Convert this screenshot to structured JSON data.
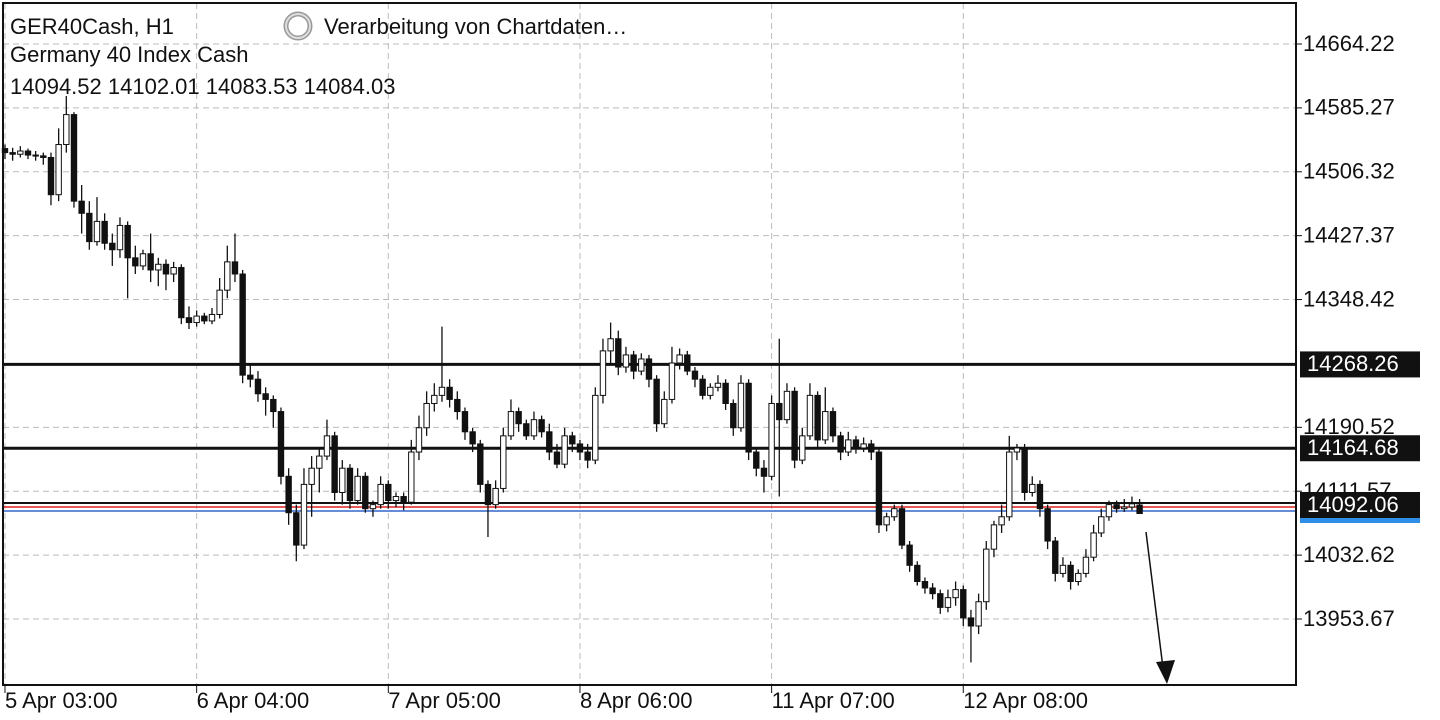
{
  "chart_data": {
    "type": "candlestick",
    "title": "GER40Cash, H1",
    "subtitle": "Germany 40 Index Cash",
    "status": "Verarbeitung von Chartdaten…",
    "ylim": [
      13872.1,
      14718.6
    ],
    "yticks": [
      14664.22,
      14585.27,
      14506.32,
      14427.37,
      14348.42,
      14190.52,
      14111.57,
      14032.62,
      13953.67
    ],
    "xlim": [
      -0.65,
      168.4
    ],
    "xticks": [
      {
        "value": 0,
        "label": "5 Apr 03:00"
      },
      {
        "value": 25,
        "label": "6 Apr 04:00"
      },
      {
        "value": 50,
        "label": "7 Apr 05:00"
      },
      {
        "value": 75,
        "label": "8 Apr 06:00"
      },
      {
        "value": 100,
        "label": "11 Apr 07:00"
      },
      {
        "value": 125,
        "label": "12 Apr 08:00"
      }
    ],
    "grid": true,
    "levels": [
      14268.26,
      14164.68
    ],
    "bid": 14092.06,
    "candles": [
      [
        14535,
        14540,
        14522,
        14530
      ],
      [
        14530,
        14536,
        14520,
        14528
      ],
      [
        14528,
        14538,
        14524,
        14532
      ],
      [
        14532,
        14535,
        14522,
        14527
      ],
      [
        14527,
        14532,
        14520,
        14526
      ],
      [
        14526,
        14530,
        14515,
        14524
      ],
      [
        14524,
        14530,
        14465,
        14478
      ],
      [
        14478,
        14560,
        14470,
        14540
      ],
      [
        14540,
        14600,
        14530,
        14577
      ],
      [
        14577,
        14580,
        14462,
        14470
      ],
      [
        14470,
        14490,
        14430,
        14455
      ],
      [
        14455,
        14470,
        14410,
        14420
      ],
      [
        14420,
        14475,
        14415,
        14445
      ],
      [
        14445,
        14455,
        14410,
        14418
      ],
      [
        14418,
        14430,
        14390,
        14410
      ],
      [
        14410,
        14450,
        14400,
        14440
      ],
      [
        14440,
        14445,
        14350,
        14400
      ],
      [
        14400,
        14415,
        14380,
        14390
      ],
      [
        14390,
        14410,
        14385,
        14405
      ],
      [
        14405,
        14430,
        14370,
        14385
      ],
      [
        14385,
        14400,
        14365,
        14392
      ],
      [
        14392,
        14398,
        14360,
        14380
      ],
      [
        14380,
        14395,
        14370,
        14388
      ],
      [
        14388,
        14392,
        14318,
        14326
      ],
      [
        14326,
        14340,
        14312,
        14320
      ],
      [
        14320,
        14335,
        14315,
        14328
      ],
      [
        14328,
        14332,
        14318,
        14322
      ],
      [
        14322,
        14338,
        14318,
        14330
      ],
      [
        14330,
        14375,
        14325,
        14360
      ],
      [
        14360,
        14415,
        14350,
        14395
      ],
      [
        14395,
        14430,
        14370,
        14380
      ],
      [
        14380,
        14385,
        14245,
        14255
      ],
      [
        14255,
        14270,
        14240,
        14250
      ],
      [
        14250,
        14260,
        14222,
        14232
      ],
      [
        14232,
        14240,
        14205,
        14225
      ],
      [
        14225,
        14230,
        14190,
        14210
      ],
      [
        14210,
        14215,
        14120,
        14130
      ],
      [
        14130,
        14140,
        14070,
        14085
      ],
      [
        14085,
        14095,
        14025,
        14045
      ],
      [
        14045,
        14140,
        14040,
        14120
      ],
      [
        14120,
        14155,
        14080,
        14140
      ],
      [
        14140,
        14165,
        14110,
        14155
      ],
      [
        14155,
        14200,
        14150,
        14180
      ],
      [
        14180,
        14185,
        14100,
        14110
      ],
      [
        14110,
        14150,
        14095,
        14140
      ],
      [
        14140,
        14145,
        14090,
        14100
      ],
      [
        14100,
        14140,
        14095,
        14130
      ],
      [
        14130,
        14135,
        14085,
        14090
      ],
      [
        14090,
        14100,
        14080,
        14095
      ],
      [
        14095,
        14130,
        14090,
        14120
      ],
      [
        14120,
        14125,
        14090,
        14100
      ],
      [
        14100,
        14110,
        14092,
        14105
      ],
      [
        14105,
        14110,
        14088,
        14098
      ],
      [
        14098,
        14175,
        14095,
        14160
      ],
      [
        14160,
        14205,
        14150,
        14190
      ],
      [
        14190,
        14235,
        14180,
        14220
      ],
      [
        14220,
        14245,
        14210,
        14230
      ],
      [
        14230,
        14315,
        14222,
        14240
      ],
      [
        14240,
        14250,
        14215,
        14225
      ],
      [
        14225,
        14235,
        14200,
        14210
      ],
      [
        14210,
        14215,
        14175,
        14185
      ],
      [
        14185,
        14190,
        14160,
        14170
      ],
      [
        14170,
        14175,
        14110,
        14120
      ],
      [
        14120,
        14125,
        14055,
        14095
      ],
      [
        14095,
        14125,
        14090,
        14115
      ],
      [
        14115,
        14190,
        14110,
        14180
      ],
      [
        14180,
        14225,
        14175,
        14210
      ],
      [
        14210,
        14215,
        14185,
        14195
      ],
      [
        14195,
        14200,
        14175,
        14180
      ],
      [
        14180,
        14210,
        14175,
        14200
      ],
      [
        14200,
        14205,
        14178,
        14185
      ],
      [
        14185,
        14195,
        14150,
        14160
      ],
      [
        14160,
        14170,
        14140,
        14145
      ],
      [
        14145,
        14190,
        14140,
        14180
      ],
      [
        14180,
        14185,
        14160,
        14170
      ],
      [
        14170,
        14175,
        14150,
        14160
      ],
      [
        14160,
        14170,
        14140,
        14150
      ],
      [
        14150,
        14240,
        14145,
        14230
      ],
      [
        14230,
        14300,
        14220,
        14285
      ],
      [
        14285,
        14320,
        14270,
        14300
      ],
      [
        14300,
        14310,
        14255,
        14265
      ],
      [
        14265,
        14290,
        14258,
        14280
      ],
      [
        14280,
        14285,
        14250,
        14260
      ],
      [
        14260,
        14282,
        14255,
        14275
      ],
      [
        14275,
        14280,
        14240,
        14250
      ],
      [
        14250,
        14255,
        14185,
        14195
      ],
      [
        14195,
        14235,
        14190,
        14225
      ],
      [
        14225,
        14290,
        14220,
        14270
      ],
      [
        14270,
        14288,
        14262,
        14280
      ],
      [
        14280,
        14285,
        14255,
        14260
      ],
      [
        14260,
        14265,
        14240,
        14250
      ],
      [
        14250,
        14255,
        14225,
        14230
      ],
      [
        14230,
        14245,
        14225,
        14240
      ],
      [
        14240,
        14255,
        14235,
        14245
      ],
      [
        14245,
        14250,
        14212,
        14220
      ],
      [
        14220,
        14225,
        14180,
        14190
      ],
      [
        14190,
        14255,
        14185,
        14245
      ],
      [
        14245,
        14250,
        14150,
        14160
      ],
      [
        14160,
        14165,
        14130,
        14140
      ],
      [
        14140,
        14150,
        14110,
        14130
      ],
      [
        14130,
        14230,
        14125,
        14220
      ],
      [
        14220,
        14300,
        14105,
        14200
      ],
      [
        14200,
        14245,
        14195,
        14235
      ],
      [
        14235,
        14240,
        14140,
        14150
      ],
      [
        14150,
        14190,
        14145,
        14180
      ],
      [
        14180,
        14245,
        14175,
        14230
      ],
      [
        14230,
        14235,
        14165,
        14175
      ],
      [
        14175,
        14240,
        14170,
        14210
      ],
      [
        14210,
        14215,
        14172,
        14180
      ],
      [
        14180,
        14185,
        14150,
        14160
      ],
      [
        14160,
        14185,
        14155,
        14175
      ],
      [
        14175,
        14180,
        14158,
        14165
      ],
      [
        14165,
        14178,
        14160,
        14170
      ],
      [
        14170,
        14175,
        14150,
        14160
      ],
      [
        14160,
        14165,
        14060,
        14070
      ],
      [
        14070,
        14085,
        14062,
        14080
      ],
      [
        14080,
        14095,
        14075,
        14090
      ],
      [
        14090,
        14095,
        14040,
        14045
      ],
      [
        14045,
        14050,
        14012,
        14020
      ],
      [
        14020,
        14025,
        13995,
        14000
      ],
      [
        14000,
        14005,
        13985,
        13992
      ],
      [
        13992,
        13998,
        13978,
        13985
      ],
      [
        13985,
        13990,
        13960,
        13968
      ],
      [
        13968,
        13990,
        13962,
        13980
      ],
      [
        13980,
        14000,
        13970,
        13990
      ],
      [
        13990,
        13995,
        13945,
        13955
      ],
      [
        13955,
        13965,
        13900,
        13945
      ],
      [
        13945,
        13985,
        13935,
        13975
      ],
      [
        13975,
        14050,
        13965,
        14040
      ],
      [
        14040,
        14075,
        14030,
        14070
      ],
      [
        14070,
        14095,
        14060,
        14080
      ],
      [
        14080,
        14180,
        14075,
        14160
      ],
      [
        14160,
        14170,
        14150,
        14165
      ],
      [
        14165,
        14170,
        14100,
        14110
      ],
      [
        14110,
        14130,
        14105,
        14120
      ],
      [
        14120,
        14125,
        14080,
        14090
      ],
      [
        14090,
        14095,
        14040,
        14050
      ],
      [
        14050,
        14055,
        14000,
        14010
      ],
      [
        14010,
        14030,
        14005,
        14020
      ],
      [
        14020,
        14025,
        13990,
        14000
      ],
      [
        14000,
        14015,
        13995,
        14010
      ],
      [
        14010,
        14040,
        14005,
        14030
      ],
      [
        14030,
        14070,
        14025,
        14060
      ],
      [
        14060,
        14090,
        14055,
        14080
      ],
      [
        14080,
        14100,
        14075,
        14095
      ],
      [
        14095,
        14100,
        14085,
        14090
      ],
      [
        14090,
        14102,
        14086,
        14092
      ],
      [
        14092,
        14105,
        14088,
        14096
      ],
      [
        14094.52,
        14102.01,
        14083.53,
        14084.03
      ]
    ]
  }
}
